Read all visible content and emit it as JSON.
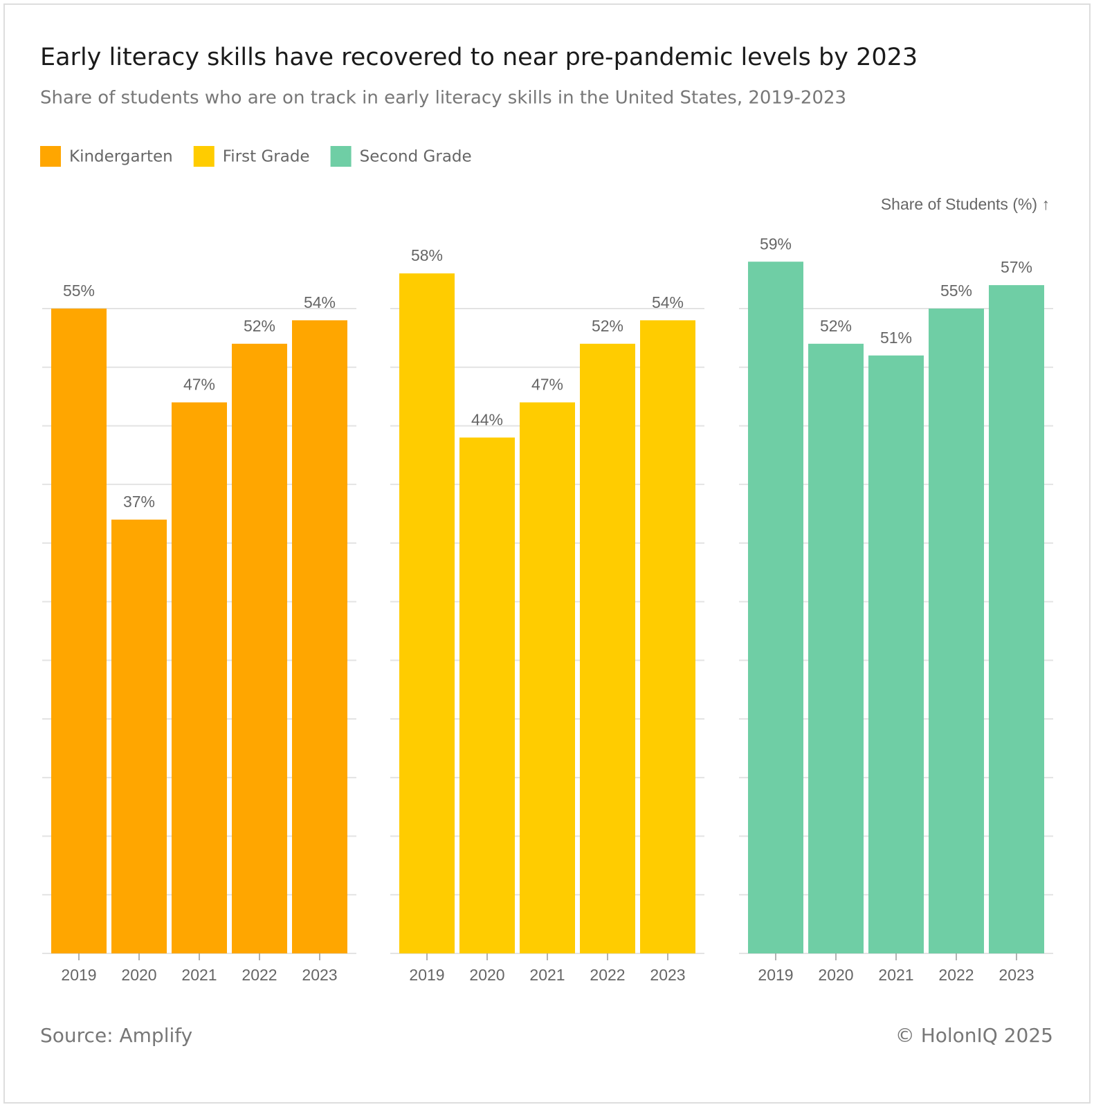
{
  "chart_data": {
    "type": "bar",
    "title": "Early literacy skills have recovered to near pre-pandemic levels by 2023",
    "subtitle": "Share of students who are on track in early literacy skills in the United States, 2019-2023",
    "y_label": "Share of Students (%) ↑",
    "categories": [
      "2019",
      "2020",
      "2021",
      "2022",
      "2023"
    ],
    "series": [
      {
        "name": "Kindergarten",
        "color": "#ffa600",
        "values": [
          55,
          37,
          47,
          52,
          54
        ],
        "value_labels": [
          "55%",
          "37%",
          "47%",
          "52%",
          "54%"
        ]
      },
      {
        "name": "First Grade",
        "color": "#ffcc00",
        "values": [
          58,
          44,
          47,
          52,
          54
        ],
        "value_labels": [
          "58%",
          "44%",
          "47%",
          "52%",
          "54%"
        ]
      },
      {
        "name": "Second Grade",
        "color": "#6fcea5",
        "values": [
          59,
          52,
          51,
          55,
          57
        ],
        "value_labels": [
          "59%",
          "52%",
          "51%",
          "55%",
          "57%"
        ]
      }
    ],
    "ylim": [
      0,
      60
    ],
    "yticks": [
      0,
      5,
      10,
      15,
      20,
      25,
      30,
      35,
      40,
      45,
      50,
      55
    ],
    "grid": true,
    "source": "Source: Amplify",
    "credit": "© HolonIQ 2025"
  }
}
